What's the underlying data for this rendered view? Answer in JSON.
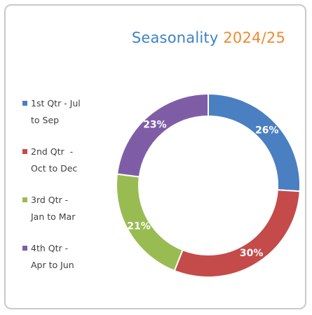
{
  "chart_data": {
    "type": "pie",
    "donut": true,
    "title": "Seasonality",
    "title_suffix": "2024/25",
    "legend_position": "left",
    "start_angle": "12 o'clock, clockwise",
    "slices": [
      {
        "label_line1": "1st Qtr - Jul",
        "label_line2": "to Sep",
        "value": 26,
        "value_label": "26%",
        "color": "#4a7fc2"
      },
      {
        "label_line1": "2nd Qtr  -",
        "label_line2": "Oct to Dec",
        "value": 30,
        "value_label": "30%",
        "color": "#c44b4a"
      },
      {
        "label_line1": "3rd Qtr -",
        "label_line2": "Jan to Mar",
        "value": 21,
        "value_label": "21%",
        "color": "#98bc52"
      },
      {
        "label_line1": "4th Qtr -",
        "label_line2": "Apr to Jun",
        "value": 23,
        "value_label": "23%",
        "color": "#7f5da6"
      }
    ]
  },
  "colors": {
    "title_main": "#3f82c4",
    "title_year": "#ef8a2e",
    "frame_border": "#c9c9c9"
  }
}
